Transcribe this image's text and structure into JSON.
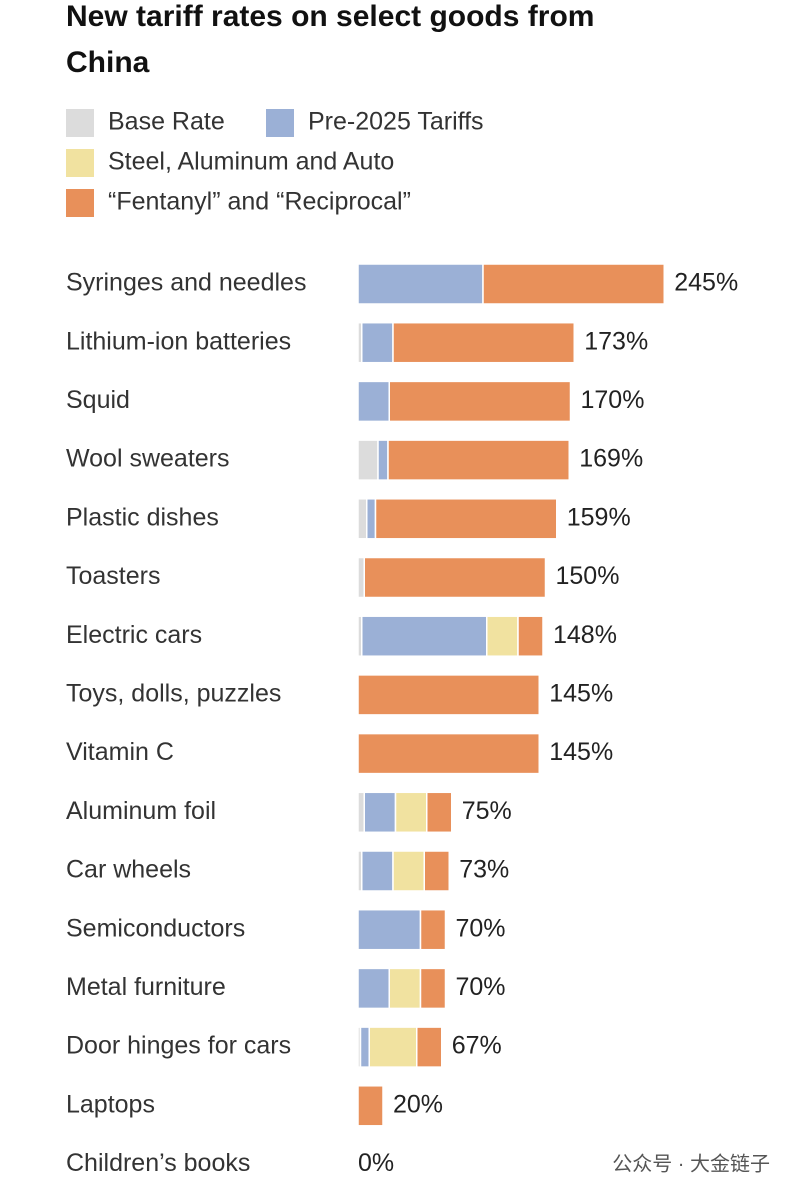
{
  "chart_data": {
    "type": "stacked-bar-horizontal",
    "title_lines": [
      "New tariff rates on select goods from",
      "China"
    ],
    "categories": [
      "Syringes and needles",
      "Lithium-ion batteries",
      "Squid",
      "Wool sweaters",
      "Plastic dishes",
      "Toasters",
      "Electric cars",
      "Toys, dolls, puzzles",
      "Vitamin C",
      "Aluminum foil",
      "Car wheels",
      "Semiconductors",
      "Metal furniture",
      "Door hinges for cars",
      "Laptops",
      "Children’s books"
    ],
    "series": [
      {
        "name": "Base Rate",
        "color": "#dcdcdc",
        "values": [
          0,
          3,
          0,
          16,
          7,
          5,
          3,
          0,
          0,
          5,
          3,
          0,
          0,
          2,
          0,
          0
        ]
      },
      {
        "name": "Pre-2025 Tariffs",
        "color": "#9bb0d6",
        "values": [
          100,
          25,
          25,
          8,
          7,
          0,
          100,
          0,
          0,
          25,
          25,
          50,
          25,
          7,
          0,
          0
        ]
      },
      {
        "name": "Steel, Aluminum and Auto",
        "color": "#f1e2a0",
        "values": [
          0,
          0,
          0,
          0,
          0,
          0,
          25,
          0,
          0,
          25,
          25,
          0,
          25,
          38,
          0,
          0
        ]
      },
      {
        "name": "“Fentanyl” and “Reciprocal”",
        "color": "#e8905a",
        "values": [
          145,
          145,
          145,
          145,
          145,
          145,
          20,
          145,
          145,
          20,
          20,
          20,
          20,
          20,
          20,
          0
        ]
      }
    ],
    "totals": [
      245,
      173,
      170,
      169,
      159,
      150,
      148,
      145,
      145,
      75,
      73,
      70,
      70,
      67,
      20,
      0
    ],
    "total_labels": [
      "245%",
      "173%",
      "170%",
      "169%",
      "159%",
      "150%",
      "148%",
      "145%",
      "145%",
      "75%",
      "73%",
      "70%",
      "70%",
      "67%",
      "20%",
      "0%"
    ],
    "watermark": "公众号 · 大金链子"
  }
}
